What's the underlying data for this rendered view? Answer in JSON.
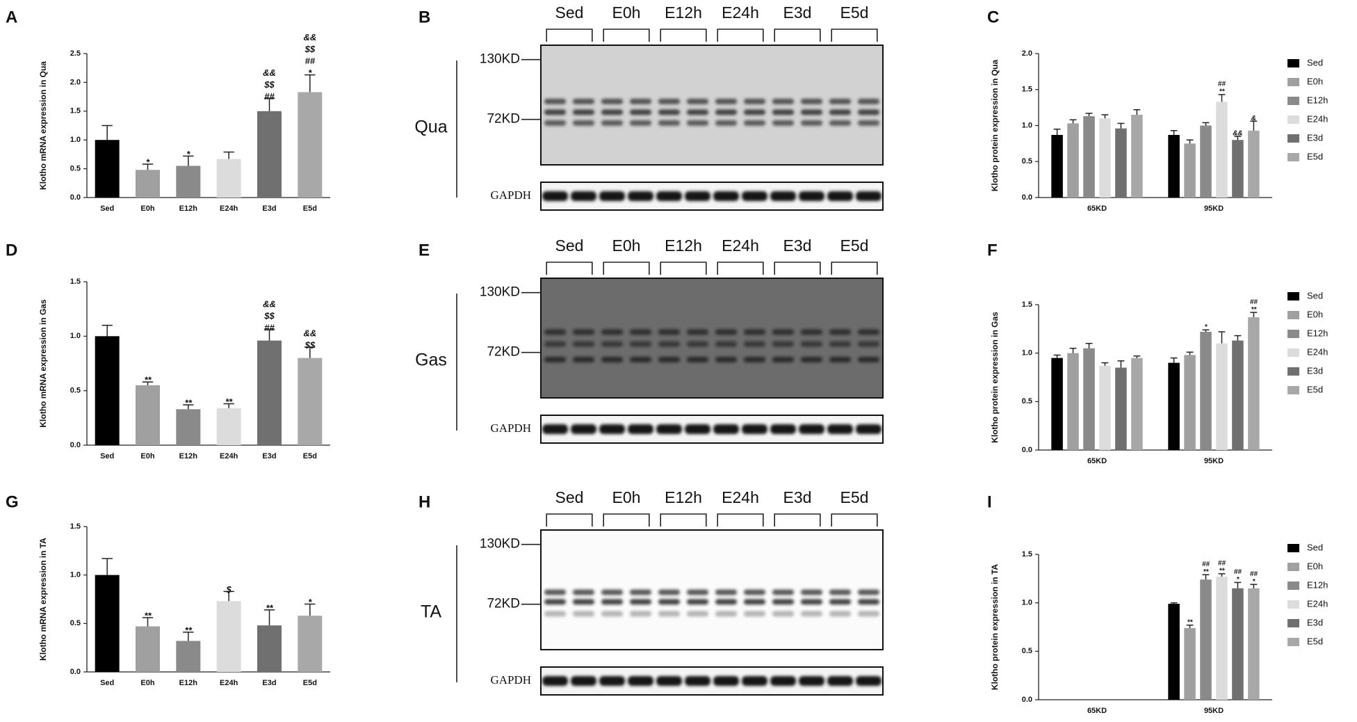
{
  "chart_data": [
    {
      "panel": "A",
      "type": "bar",
      "ylabel": "Klotho mRNA expression in Qua",
      "categories": [
        "Sed",
        "E0h",
        "E12h",
        "E24h",
        "E3d",
        "E5d"
      ],
      "values": [
        1.0,
        0.48,
        0.55,
        0.67,
        1.5,
        1.83
      ],
      "errors": [
        0.25,
        0.1,
        0.17,
        0.12,
        0.22,
        0.3
      ],
      "colors": [
        "#000000",
        "#a0a0a0",
        "#8a8a8a",
        "#dcdcdc",
        "#707070",
        "#a8a8a8"
      ],
      "annotations": [
        [],
        [
          "*"
        ],
        [
          "*"
        ],
        [],
        [
          "&&",
          "$$",
          "##"
        ],
        [
          "&&",
          "$$",
          "##",
          "*"
        ]
      ],
      "ylim": [
        0,
        2.5
      ],
      "yticks": [
        {
          "value": 0,
          "label": "0.0"
        },
        0.5,
        {
          "value": 1,
          "label": "1.0"
        },
        1.5,
        {
          "value": 2,
          "label": "2.0"
        },
        2.5
      ]
    },
    {
      "panel": "C",
      "type": "grouped_bar",
      "ylabel": "Klotho protein expression in Qua",
      "categories": [
        "65KD",
        "95KD"
      ],
      "series": [
        {
          "name": "Sed",
          "color": "#000000",
          "values": [
            0.87,
            0.87
          ],
          "errors": [
            0.08,
            0.06
          ],
          "annotations": [
            [],
            []
          ]
        },
        {
          "name": "E0h",
          "color": "#a0a0a0",
          "values": [
            1.03,
            0.75
          ],
          "errors": [
            0.05,
            0.05
          ],
          "annotations": [
            [],
            []
          ]
        },
        {
          "name": "E12h",
          "color": "#8a8a8a",
          "values": [
            1.13,
            1.0
          ],
          "errors": [
            0.04,
            0.04
          ],
          "annotations": [
            [],
            []
          ]
        },
        {
          "name": "E24h",
          "color": "#dcdcdc",
          "values": [
            1.1,
            1.33
          ],
          "errors": [
            0.05,
            0.1
          ],
          "annotations": [
            [],
            [
              "##",
              "**"
            ]
          ]
        },
        {
          "name": "E3d",
          "color": "#707070",
          "values": [
            0.96,
            0.8
          ],
          "errors": [
            0.07,
            0.05
          ],
          "annotations": [
            [],
            [
              "&&"
            ]
          ]
        },
        {
          "name": "E5d",
          "color": "#a8a8a8",
          "values": [
            1.15,
            0.93
          ],
          "errors": [
            0.07,
            0.13
          ],
          "annotations": [
            [],
            [
              "&"
            ]
          ]
        }
      ],
      "ylim": [
        0,
        2.0
      ],
      "yticks": [
        {
          "value": 0,
          "label": "0.0"
        },
        0.5,
        {
          "value": 1,
          "label": "1.0"
        },
        1.5,
        {
          "value": 2,
          "label": "2.0"
        }
      ]
    },
    {
      "panel": "D",
      "type": "bar",
      "ylabel": "Klotho mRNA expression in Gas",
      "categories": [
        "Sed",
        "E0h",
        "E12h",
        "E24h",
        "E3d",
        "E5d"
      ],
      "values": [
        1.0,
        0.55,
        0.33,
        0.34,
        0.96,
        0.8
      ],
      "errors": [
        0.1,
        0.03,
        0.04,
        0.04,
        0.1,
        0.1
      ],
      "colors": [
        "#000000",
        "#a0a0a0",
        "#8a8a8a",
        "#dcdcdc",
        "#707070",
        "#a8a8a8"
      ],
      "annotations": [
        [],
        [
          "**"
        ],
        [
          "**"
        ],
        [
          "**"
        ],
        [
          "&&",
          "$$",
          "##"
        ],
        [
          "&&",
          "$$"
        ]
      ],
      "ylim": [
        0,
        1.5
      ],
      "yticks": [
        {
          "value": 0,
          "label": "0.0"
        },
        0.5,
        {
          "value": 1,
          "label": "1.0"
        },
        1.5
      ]
    },
    {
      "panel": "F",
      "type": "grouped_bar",
      "ylabel": "Klotho protein expression in Gas",
      "categories": [
        "65KD",
        "95KD"
      ],
      "series": [
        {
          "name": "Sed",
          "color": "#000000",
          "values": [
            0.95,
            0.9
          ],
          "errors": [
            0.03,
            0.05
          ],
          "annotations": [
            [],
            []
          ]
        },
        {
          "name": "E0h",
          "color": "#a0a0a0",
          "values": [
            1.0,
            0.98
          ],
          "errors": [
            0.05,
            0.03
          ],
          "annotations": [
            [],
            []
          ]
        },
        {
          "name": "E12h",
          "color": "#8a8a8a",
          "values": [
            1.05,
            1.22
          ],
          "errors": [
            0.05,
            0.02
          ],
          "annotations": [
            [],
            [
              "*"
            ]
          ]
        },
        {
          "name": "E24h",
          "color": "#dcdcdc",
          "values": [
            0.87,
            1.1
          ],
          "errors": [
            0.03,
            0.12
          ],
          "annotations": [
            [],
            []
          ]
        },
        {
          "name": "E3d",
          "color": "#707070",
          "values": [
            0.85,
            1.13
          ],
          "errors": [
            0.07,
            0.05
          ],
          "annotations": [
            [],
            []
          ]
        },
        {
          "name": "E5d",
          "color": "#a8a8a8",
          "values": [
            0.95,
            1.37
          ],
          "errors": [
            0.02,
            0.05
          ],
          "annotations": [
            [],
            [
              "##",
              "**"
            ]
          ]
        }
      ],
      "ylim": [
        0,
        1.5
      ],
      "yticks": [
        {
          "value": 0,
          "label": "0.0"
        },
        0.5,
        {
          "value": 1,
          "label": "1.0"
        },
        1.5
      ]
    },
    {
      "panel": "G",
      "type": "bar",
      "ylabel": "Klotho mRNA expression in TA",
      "categories": [
        "Sed",
        "E0h",
        "E12h",
        "E24h",
        "E3d",
        "E5d"
      ],
      "values": [
        1.0,
        0.47,
        0.32,
        0.73,
        0.48,
        0.58
      ],
      "errors": [
        0.17,
        0.09,
        0.09,
        0.1,
        0.16,
        0.12
      ],
      "colors": [
        "#000000",
        "#a0a0a0",
        "#8a8a8a",
        "#dcdcdc",
        "#707070",
        "#a8a8a8"
      ],
      "annotations": [
        [],
        [
          "**"
        ],
        [
          "**"
        ],
        [
          "$"
        ],
        [
          "**"
        ],
        [
          "*"
        ]
      ],
      "ylim": [
        0,
        1.5
      ],
      "yticks": [
        {
          "value": 0,
          "label": "0.0"
        },
        0.5,
        {
          "value": 1,
          "label": "1.0"
        },
        1.5
      ]
    },
    {
      "panel": "I",
      "type": "grouped_bar",
      "ylabel": "Klotho protein expression in TA",
      "categories": [
        "65KD",
        "95KD"
      ],
      "series": [
        {
          "name": "Sed",
          "color": "#000000",
          "values": [
            null,
            0.99
          ],
          "errors": [
            null,
            0.01
          ],
          "annotations": [
            [],
            []
          ]
        },
        {
          "name": "E0h",
          "color": "#a0a0a0",
          "values": [
            null,
            0.74
          ],
          "errors": [
            null,
            0.03
          ],
          "annotations": [
            [],
            [
              "**"
            ]
          ]
        },
        {
          "name": "E12h",
          "color": "#8a8a8a",
          "values": [
            null,
            1.24
          ],
          "errors": [
            null,
            0.05
          ],
          "annotations": [
            [],
            [
              "##",
              "**"
            ]
          ]
        },
        {
          "name": "E24h",
          "color": "#dcdcdc",
          "values": [
            null,
            1.27
          ],
          "errors": [
            null,
            0.03
          ],
          "annotations": [
            [],
            [
              "##",
              "**"
            ]
          ]
        },
        {
          "name": "E3d",
          "color": "#707070",
          "values": [
            null,
            1.15
          ],
          "errors": [
            null,
            0.06
          ],
          "annotations": [
            [],
            [
              "##",
              "*"
            ]
          ]
        },
        {
          "name": "E5d",
          "color": "#a8a8a8",
          "values": [
            null,
            1.15
          ],
          "errors": [
            null,
            0.04
          ],
          "annotations": [
            [],
            [
              "##",
              "*"
            ]
          ]
        }
      ],
      "ylim": [
        0,
        1.5
      ],
      "yticks": [
        {
          "value": 0,
          "label": "0.0"
        },
        0.5,
        {
          "value": 1,
          "label": "1.0"
        },
        1.5
      ]
    }
  ],
  "blots": [
    {
      "panel": "B",
      "tissue": "Qua",
      "lanes": [
        "Sed",
        "E0h",
        "E12h",
        "E24h",
        "E3d",
        "E5d"
      ],
      "markers": [
        "130KD",
        "72KD"
      ],
      "loading": "GAPDH"
    },
    {
      "panel": "E",
      "tissue": "Gas",
      "lanes": [
        "Sed",
        "E0h",
        "E12h",
        "E24h",
        "E3d",
        "E5d"
      ],
      "markers": [
        "130KD",
        "72KD"
      ],
      "loading": "GAPDH"
    },
    {
      "panel": "H",
      "tissue": "TA",
      "lanes": [
        "Sed",
        "E0h",
        "E12h",
        "E24h",
        "E3d",
        "E5d"
      ],
      "markers": [
        "130KD",
        "72KD"
      ],
      "loading": "GAPDH"
    }
  ]
}
